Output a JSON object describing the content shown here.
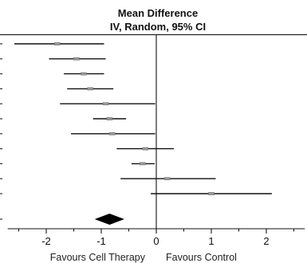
{
  "chart_data": {
    "type": "forest",
    "title": "Mean Difference",
    "subtitle": "IV, Random, 95% CI",
    "xlim": [
      -2.7,
      2.7
    ],
    "xticks": [
      -2,
      -1,
      0,
      1,
      2
    ],
    "xtick_labels": [
      "-2",
      "-1",
      "0",
      "1",
      "2"
    ],
    "favours_left": "Favours Cell Therapy",
    "favours_right": "Favours Control",
    "studies": [
      {
        "mean": -1.8,
        "lower": -2.58,
        "upper": -0.95
      },
      {
        "mean": -1.45,
        "lower": -1.95,
        "upper": -0.92
      },
      {
        "mean": -1.32,
        "lower": -1.68,
        "upper": -0.95
      },
      {
        "mean": -1.2,
        "lower": -1.62,
        "upper": -0.78
      },
      {
        "mean": -0.92,
        "lower": -1.75,
        "upper": -0.02
      },
      {
        "mean": -0.85,
        "lower": -1.15,
        "upper": -0.55
      },
      {
        "mean": -0.8,
        "lower": -1.55,
        "upper": -0.02
      },
      {
        "mean": -0.2,
        "lower": -0.72,
        "upper": 0.32
      },
      {
        "mean": -0.25,
        "lower": -0.45,
        "upper": -0.03
      },
      {
        "mean": 0.2,
        "lower": -0.65,
        "upper": 1.08
      },
      {
        "mean": 1.0,
        "lower": -0.1,
        "upper": 2.1
      }
    ],
    "pooled": {
      "mean": -0.85,
      "lower": -1.12,
      "upper": -0.58
    }
  }
}
